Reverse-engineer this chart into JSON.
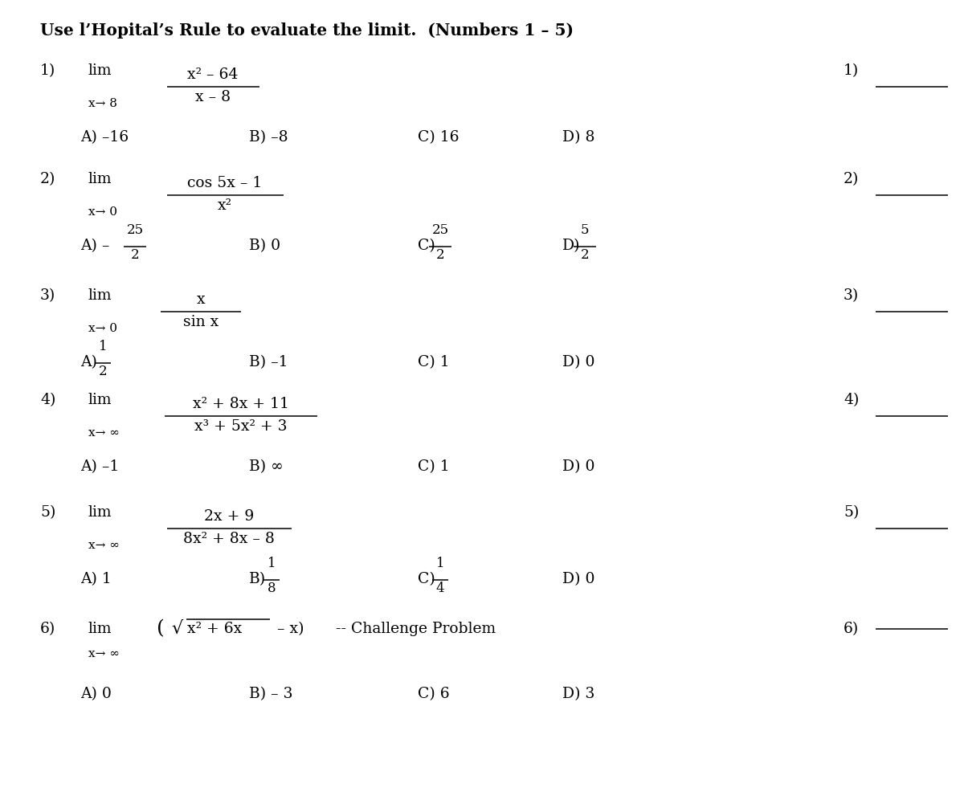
{
  "title": "Use l’Hopital’s Rule to evaluate the limit.  (Numbers 1 – 5)",
  "background_color": "#ffffff",
  "text_color": "#000000",
  "figsize": [
    12.0,
    9.91
  ],
  "dpi": 100,
  "problems": [
    {
      "num": "1)",
      "lim_sub": "x→ 8",
      "numerator": "x² – 64",
      "denominator": "x – 8",
      "choices": [
        "A) –16",
        "B) –8",
        "C) 16",
        "D) 8"
      ]
    },
    {
      "num": "2)",
      "lim_sub": "x→ 0",
      "numerator": "cos 5x – 1",
      "denominator": "x²",
      "choices_special": true,
      "choices_A": [
        "–",
        "25",
        "2"
      ],
      "choices_B": "B) 0",
      "choices_C": [
        "C)",
        "25",
        "2"
      ],
      "choices_D": [
        "D)",
        "5",
        "2"
      ]
    },
    {
      "num": "3)",
      "lim_sub": "x→ 0",
      "numerator": "x",
      "denominator": "sin x",
      "choices_special": true,
      "choices_A": [
        "A)",
        "1",
        "2"
      ],
      "choices_B": "B) –1",
      "choices_C": "C) 1",
      "choices_D": "D) 0"
    },
    {
      "num": "4)",
      "lim_sub": "x→ ∞",
      "numerator": "x² + 8x + 11",
      "denominator": "x³ + 5x² + 3",
      "choices": [
        "A) –1",
        "B) ∞",
        "C) 1",
        "D) 0"
      ]
    },
    {
      "num": "5)",
      "lim_sub": "x→ ∞",
      "numerator": "2x + 9",
      "denominator": "8x² + 8x – 8",
      "choices_special": true,
      "choices_A": "A) 1",
      "choices_B": [
        "B)",
        "1",
        "8"
      ],
      "choices_C": [
        "C)",
        "1",
        "4"
      ],
      "choices_D": "D) 0"
    }
  ],
  "ans_labels": [
    "1)",
    "2)",
    "3)",
    "4)",
    "5)",
    "6)"
  ]
}
